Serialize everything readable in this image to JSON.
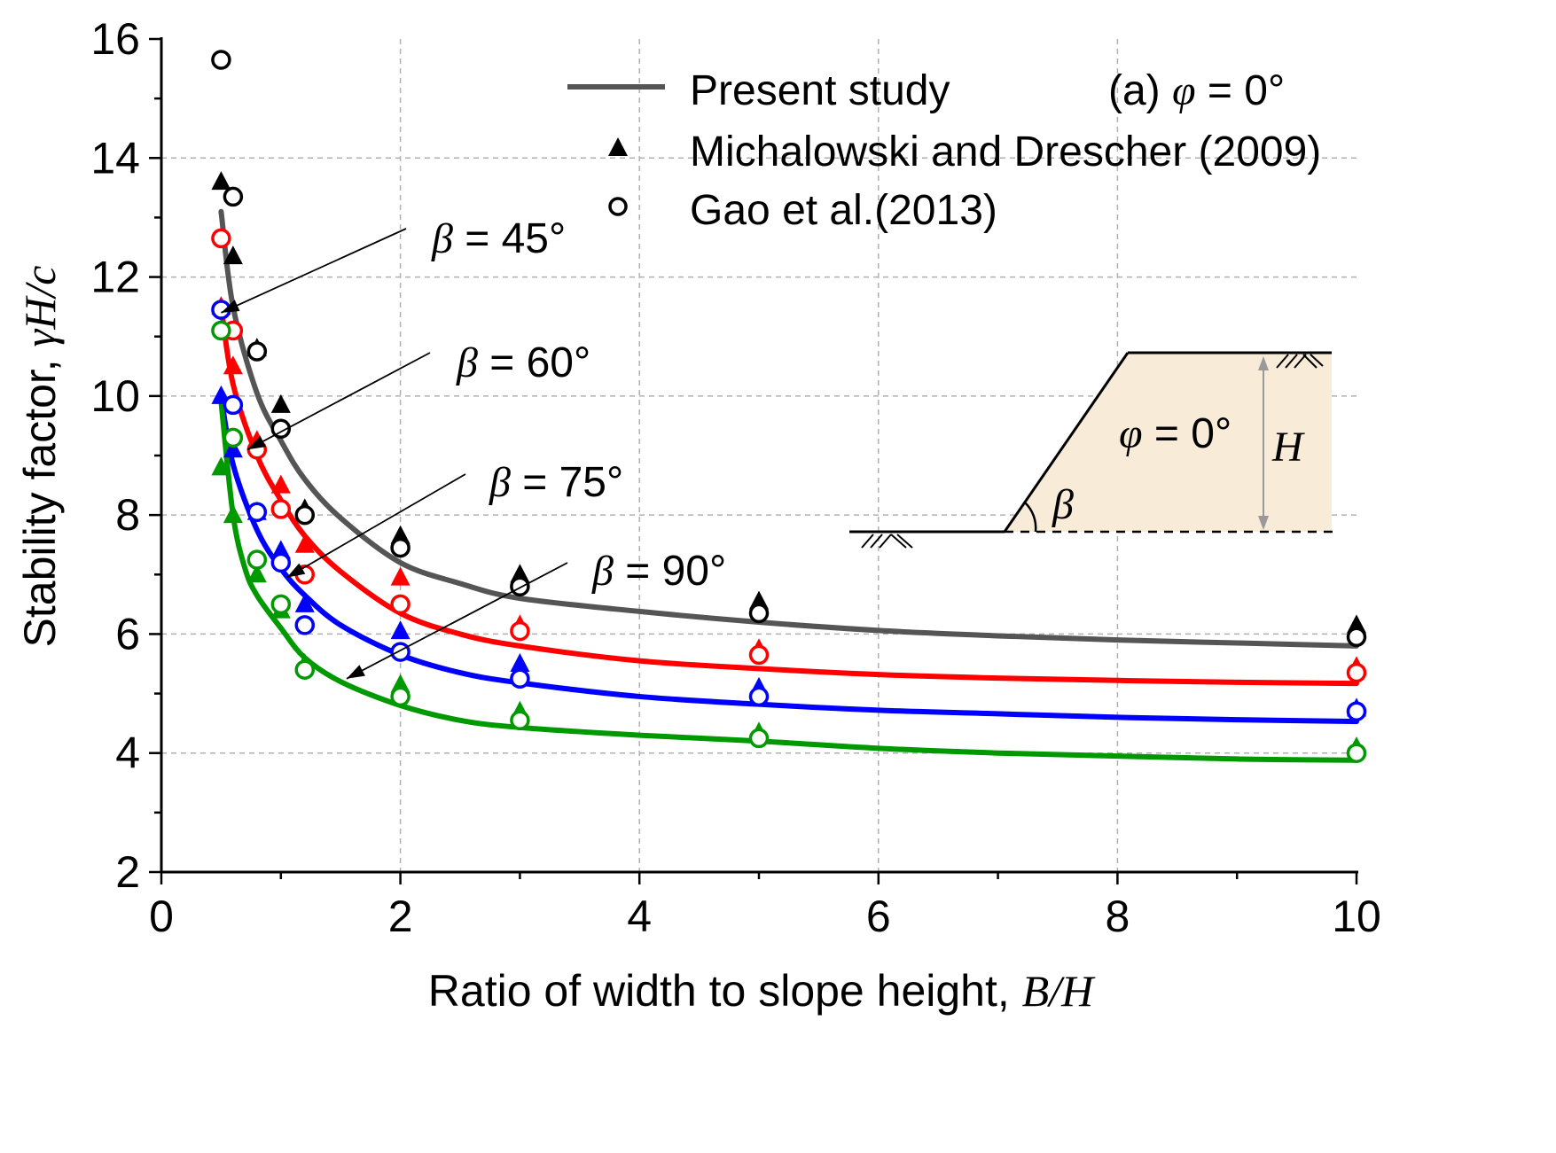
{
  "chart_data": {
    "type": "line",
    "title": "(a) φ = 0°",
    "xlabel": "Ratio of  width  to slope height, B/H",
    "ylabel": "Stability factor, γH/c",
    "xlim": [
      0,
      10
    ],
    "ylim": [
      2,
      16
    ],
    "xticks": [
      0,
      2,
      4,
      6,
      8,
      10
    ],
    "yticks": [
      2,
      4,
      6,
      8,
      10,
      12,
      14,
      16
    ],
    "grid": true,
    "legend": {
      "position": "top-right",
      "entries": [
        "Present study",
        "Michalowski and Drescher (2009)",
        "Gao et al.(2013)"
      ]
    },
    "series": [
      {
        "name": "β = 45°",
        "color": "#555555",
        "curve": {
          "x": [
            0.5,
            0.6,
            0.8,
            1.0,
            1.2,
            1.5,
            2,
            2.5,
            3,
            4,
            5,
            6,
            7,
            8,
            9,
            10
          ],
          "y": [
            13.1,
            11.5,
            10.05,
            9.25,
            8.6,
            7.95,
            7.2,
            6.85,
            6.6,
            6.38,
            6.2,
            6.06,
            5.97,
            5.9,
            5.85,
            5.8
          ]
        },
        "michalowski_2009": {
          "x": [
            0.5,
            0.6,
            0.8,
            1.0,
            1.2,
            2,
            3,
            5,
            10
          ],
          "y": [
            13.6,
            12.35,
            10.8,
            9.85,
            8.1,
            7.65,
            7.0,
            6.55,
            6.15
          ]
        },
        "gao_2013": {
          "x": [
            0.5,
            0.6,
            0.8,
            1.0,
            1.2,
            2,
            3,
            5,
            10
          ],
          "y": [
            15.65,
            13.35,
            10.75,
            9.45,
            8.0,
            7.45,
            6.8,
            6.35,
            5.95
          ]
        }
      },
      {
        "name": "β = 60°",
        "color": "#ff0000",
        "curve": {
          "x": [
            0.5,
            0.6,
            0.8,
            1.0,
            1.2,
            1.5,
            2,
            2.5,
            3,
            4,
            5,
            6,
            7,
            8,
            9,
            10
          ],
          "y": [
            11.5,
            10.2,
            9.0,
            8.25,
            7.65,
            7.05,
            6.35,
            6.0,
            5.8,
            5.55,
            5.42,
            5.32,
            5.26,
            5.22,
            5.19,
            5.17
          ]
        },
        "michalowski_2009": {
          "x": [
            0.5,
            0.6,
            0.8,
            1.0,
            1.2,
            2,
            3,
            5,
            10
          ],
          "y": [
            11.5,
            10.5,
            9.25,
            8.5,
            7.5,
            6.95,
            6.15,
            5.75,
            5.45
          ]
        },
        "gao_2013": {
          "x": [
            0.5,
            0.6,
            0.8,
            1.0,
            1.2,
            2,
            3,
            5,
            10
          ],
          "y": [
            12.65,
            11.1,
            9.1,
            8.1,
            7.0,
            6.5,
            6.05,
            5.65,
            5.35
          ]
        }
      },
      {
        "name": "β = 75°",
        "color": "#0000ff",
        "curve": {
          "x": [
            0.5,
            0.6,
            0.8,
            1.0,
            1.2,
            1.5,
            2,
            2.5,
            3,
            4,
            5,
            6,
            7,
            8,
            9,
            10
          ],
          "y": [
            10.0,
            8.85,
            7.75,
            7.1,
            6.65,
            6.15,
            5.65,
            5.35,
            5.18,
            4.95,
            4.82,
            4.72,
            4.66,
            4.6,
            4.56,
            4.53
          ]
        },
        "michalowski_2009": {
          "x": [
            0.5,
            0.6,
            0.8,
            1.0,
            1.2,
            2,
            3,
            5,
            10
          ],
          "y": [
            10.0,
            9.1,
            8.05,
            7.4,
            6.5,
            6.05,
            5.5,
            5.1,
            4.75
          ]
        },
        "gao_2013": {
          "x": [
            0.5,
            0.6,
            0.8,
            1.0,
            1.2,
            2,
            3,
            5,
            10
          ],
          "y": [
            11.45,
            9.85,
            8.05,
            7.2,
            6.15,
            5.7,
            5.25,
            4.95,
            4.7
          ]
        }
      },
      {
        "name": "β = 90°",
        "color": "#009900",
        "curve": {
          "x": [
            0.5,
            0.6,
            0.7,
            0.8,
            1.0,
            1.2,
            1.5,
            2,
            2.5,
            3,
            4,
            5,
            6,
            7,
            8,
            9,
            10
          ],
          "y": [
            9.9,
            8.0,
            7.1,
            6.65,
            6.1,
            5.6,
            5.2,
            4.8,
            4.55,
            4.43,
            4.3,
            4.2,
            4.08,
            4.0,
            3.95,
            3.9,
            3.88
          ]
        },
        "michalowski_2009": {
          "x": [
            0.5,
            0.6,
            0.8,
            1.0,
            1.2,
            2,
            3,
            5,
            10
          ],
          "y": [
            8.8,
            8.0,
            7.0,
            6.4,
            5.5,
            5.15,
            4.7,
            4.35,
            4.1
          ]
        },
        "gao_2013": {
          "x": [
            0.5,
            0.6,
            0.8,
            1.0,
            1.2,
            2,
            3,
            5,
            10
          ],
          "y": [
            11.1,
            9.3,
            7.25,
            6.5,
            5.4,
            4.95,
            4.55,
            4.25,
            4.0
          ]
        }
      }
    ],
    "annotations": [
      {
        "label": "β = 45°",
        "points_to": [
          0.5,
          11.4
        ]
      },
      {
        "label": "β = 60°",
        "points_to": [
          0.72,
          9.1
        ]
      },
      {
        "label": "β = 75°",
        "points_to": [
          1.05,
          6.95
        ]
      },
      {
        "label": "β = 90°",
        "points_to": [
          1.55,
          5.25
        ]
      }
    ]
  },
  "labels": {
    "xlabel_main": "Ratio of  width  to slope height, ",
    "xlabel_ital": "B/H",
    "ylabel_main": "Stability factor, ",
    "ylabel_ital": "γH/c",
    "panel_prefix": "(a) ",
    "panel_phi": "φ",
    "panel_suffix": " = 0°",
    "legend_present": "Present study",
    "legend_michalowski": "Michalowski and Drescher (2009)",
    "legend_gao": "Gao et al.(2013)",
    "beta_symbol": "β",
    "beta_45": " = 45°",
    "beta_60": " = 60°",
    "beta_75": " = 75°",
    "beta_90": " = 90°"
  },
  "inset": {
    "phi_symbol": "φ",
    "phi_value": " = 0°",
    "height_label": "H",
    "angle_label": "β",
    "fill_color": "#f8ebd8"
  }
}
